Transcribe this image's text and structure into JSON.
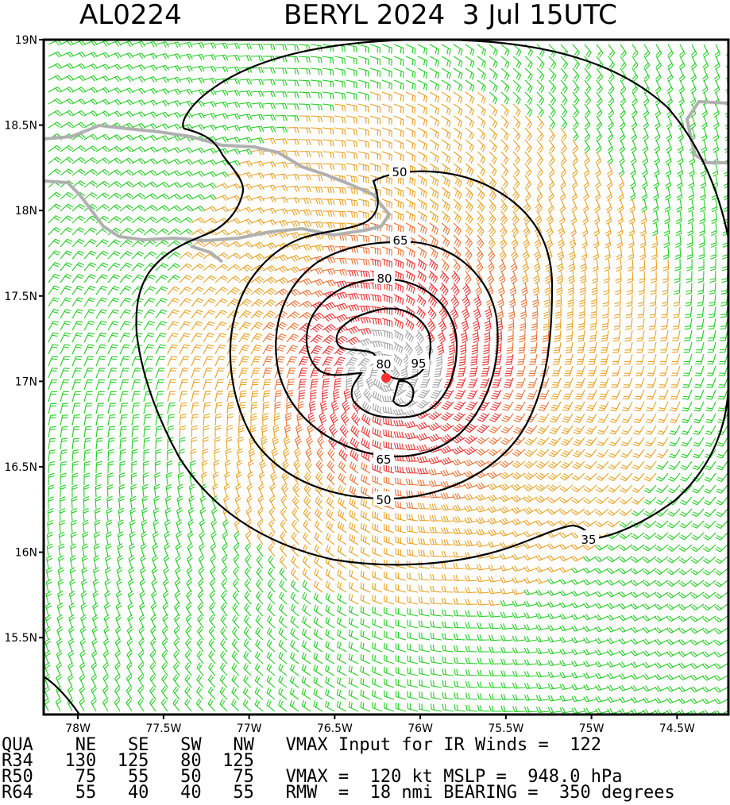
{
  "header": {
    "storm_id": "AL0224",
    "storm_title": "BERYL 2024  3 Jul 15UTC"
  },
  "axes": {
    "lat_ticks": [
      "19N",
      "18.5N",
      "18N",
      "17.5N",
      "17N",
      "16.5N",
      "16N",
      "15.5N"
    ],
    "lat_values": [
      19,
      18.5,
      18,
      17.5,
      17,
      16.5,
      16,
      15.5
    ],
    "lon_ticks": [
      "78W",
      "77.5W",
      "77W",
      "76.5W",
      "76W",
      "75.5W",
      "75W",
      "74.5W"
    ],
    "lon_values": [
      -78,
      -77.5,
      -77,
      -76.5,
      -76,
      -75.5,
      -75,
      -74.5
    ],
    "lat_range": [
      15.05,
      19.0
    ],
    "lon_range": [
      -78.2,
      -74.2
    ]
  },
  "contours": [
    {
      "label": "35"
    },
    {
      "label": "50"
    },
    {
      "label": "65"
    },
    {
      "label": "80"
    },
    {
      "label": "95"
    },
    {
      "label": "80"
    },
    {
      "label": "65"
    },
    {
      "label": "50"
    }
  ],
  "storm_center": {
    "lat": 17.03,
    "lon": -76.2
  },
  "colors": {
    "green": "#22cc22",
    "yellow": "#e8a020",
    "orange": "#e87030",
    "red": "#e83030",
    "gray": "#a0a0a0",
    "center": "#ff3030",
    "coast": "#b0b0b0"
  },
  "footer": {
    "line1": "QUA    NE   SE   SW   NW   VMAX Input for IR Winds =  122",
    "line2": "R34   130  125   80  125",
    "line3": "R50    75   55   50   75   VMAX =  120 kt MSLP =  948.0 hPa",
    "line4": "R64    55   40   40   55   RMW  =  18 nmi BEARING =  350 degrees"
  }
}
